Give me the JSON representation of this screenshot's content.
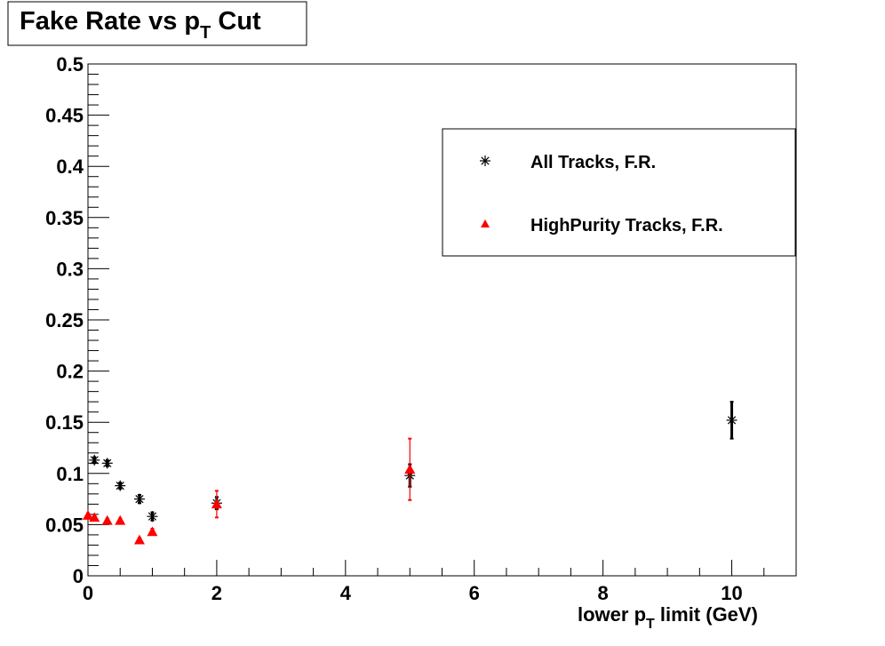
{
  "chart_data": {
    "type": "scatter",
    "title": "Fake Rate vs p",
    "title_sub": "T",
    "title_suffix": " Cut",
    "xlabel": "lower p",
    "xlabel_sub": "T",
    "xlabel_suffix": " limit (GeV)",
    "ylabel": "",
    "xlim": [
      0,
      11
    ],
    "ylim": [
      0,
      0.5
    ],
    "x_ticks": [
      "0",
      "2",
      "4",
      "6",
      "8",
      "10"
    ],
    "y_ticks": [
      "0",
      "0.05",
      "0.1",
      "0.15",
      "0.2",
      "0.25",
      "0.3",
      "0.35",
      "0.4",
      "0.45",
      "0.5"
    ],
    "grid": false,
    "legend_position": "top-right",
    "series": [
      {
        "name": "All Tracks, F.R.",
        "color": "#000000",
        "marker": "star",
        "points": [
          {
            "x": 0.1,
            "y": 0.113,
            "err": 0.003
          },
          {
            "x": 0.3,
            "y": 0.11,
            "err": 0.003
          },
          {
            "x": 0.5,
            "y": 0.088,
            "err": 0.003
          },
          {
            "x": 0.8,
            "y": 0.075,
            "err": 0.004
          },
          {
            "x": 1,
            "y": 0.058,
            "err": 0.004
          },
          {
            "x": 2,
            "y": 0.071,
            "err": 0.006
          },
          {
            "x": 5,
            "y": 0.098,
            "err": 0.011
          },
          {
            "x": 10,
            "y": 0.152,
            "err": 0.018
          }
        ]
      },
      {
        "name": "HighPurity Tracks, F.R.",
        "color": "#ff0000",
        "marker": "triangle",
        "points": [
          {
            "x": 0,
            "y": 0.059,
            "err": 0.002
          },
          {
            "x": 0.1,
            "y": 0.057,
            "err": 0.002
          },
          {
            "x": 0.3,
            "y": 0.054,
            "err": 0.002
          },
          {
            "x": 0.5,
            "y": 0.054,
            "err": 0.002
          },
          {
            "x": 0.8,
            "y": 0.035,
            "err": 0.002
          },
          {
            "x": 1,
            "y": 0.043,
            "err": 0.003
          },
          {
            "x": 2,
            "y": 0.07,
            "err": 0.013
          },
          {
            "x": 5,
            "y": 0.104,
            "err": 0.03
          }
        ]
      }
    ]
  }
}
